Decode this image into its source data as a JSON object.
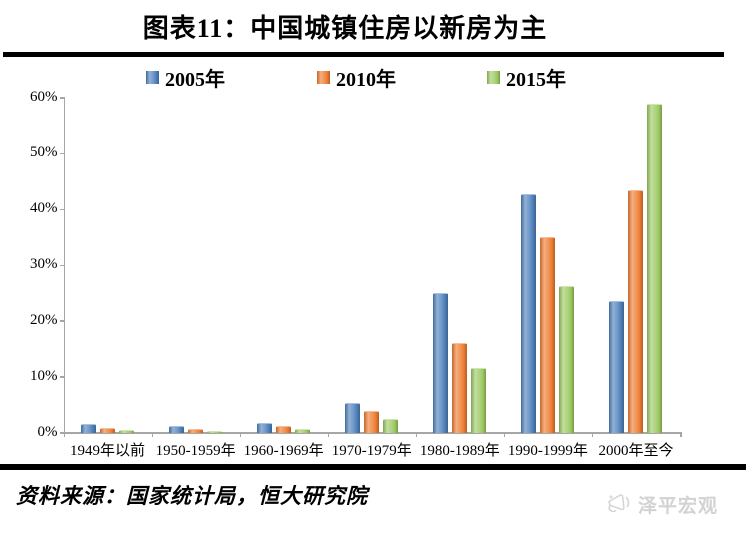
{
  "title": "图表11：中国城镇住房以新房为主",
  "source_note": "资料来源：国家统计局，恒大研究院",
  "watermark": {
    "label": "泽平宏观",
    "icon": "megaphone-icon"
  },
  "colors": {
    "series_2005": "#4F81BD",
    "series_2010": "#ED7D31",
    "series_2015": "#9DC962",
    "axis": "#A6A6A6",
    "rule": "#000000",
    "watermark": "#D2D2D2"
  },
  "chart_data": {
    "type": "bar",
    "title": "图表11：中国城镇住房以新房为主",
    "categories": [
      "1949年以前",
      "1950-1959年",
      "1960-1969年",
      "1970-1979年",
      "1980-1989年",
      "1990-1999年",
      "2000年至今"
    ],
    "series": [
      {
        "name": "2005年",
        "color": "#4F81BD",
        "values": [
          1.5,
          1.0,
          1.6,
          5.2,
          24.9,
          42.7,
          23.5
        ]
      },
      {
        "name": "2010年",
        "color": "#ED7D31",
        "values": [
          0.7,
          0.5,
          1.0,
          3.7,
          16.0,
          35.0,
          43.3
        ]
      },
      {
        "name": "2015年",
        "color": "#9DC962",
        "values": [
          0.4,
          0.2,
          0.6,
          2.4,
          11.5,
          26.2,
          58.7
        ]
      }
    ],
    "xlabel": "",
    "ylabel": "",
    "ylim": [
      0,
      60
    ],
    "y_tick_step": 10,
    "y_tick_labels": [
      "0%",
      "10%",
      "20%",
      "30%",
      "40%",
      "50%",
      "60%"
    ],
    "legend_position": "top",
    "grid": false
  }
}
